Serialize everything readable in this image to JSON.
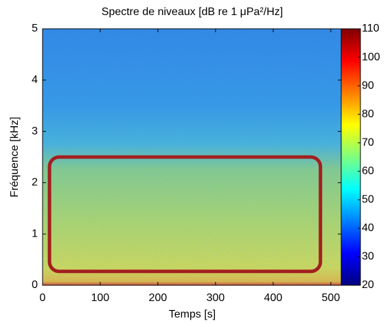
{
  "chart_data": {
    "type": "spectrogram",
    "title": "Spectre de niveaux [dB re 1 μPa²/Hz]",
    "x_label": "Temps [s]",
    "y_label": "Fréquence [kHz]",
    "xlim": [
      0,
      518
    ],
    "xticks": [
      0,
      100,
      200,
      300,
      400,
      500
    ],
    "ylim": [
      0,
      5
    ],
    "yticks": [
      0,
      1,
      2,
      3,
      4,
      5
    ],
    "colormap": "jet",
    "clim": [
      20,
      110
    ],
    "cticks": [
      20,
      30,
      40,
      50,
      60,
      70,
      80,
      90,
      100,
      110
    ],
    "highlight": {
      "x": [
        12,
        482
      ],
      "y": [
        0.27,
        2.5
      ],
      "color": "#a31f1f"
    }
  }
}
